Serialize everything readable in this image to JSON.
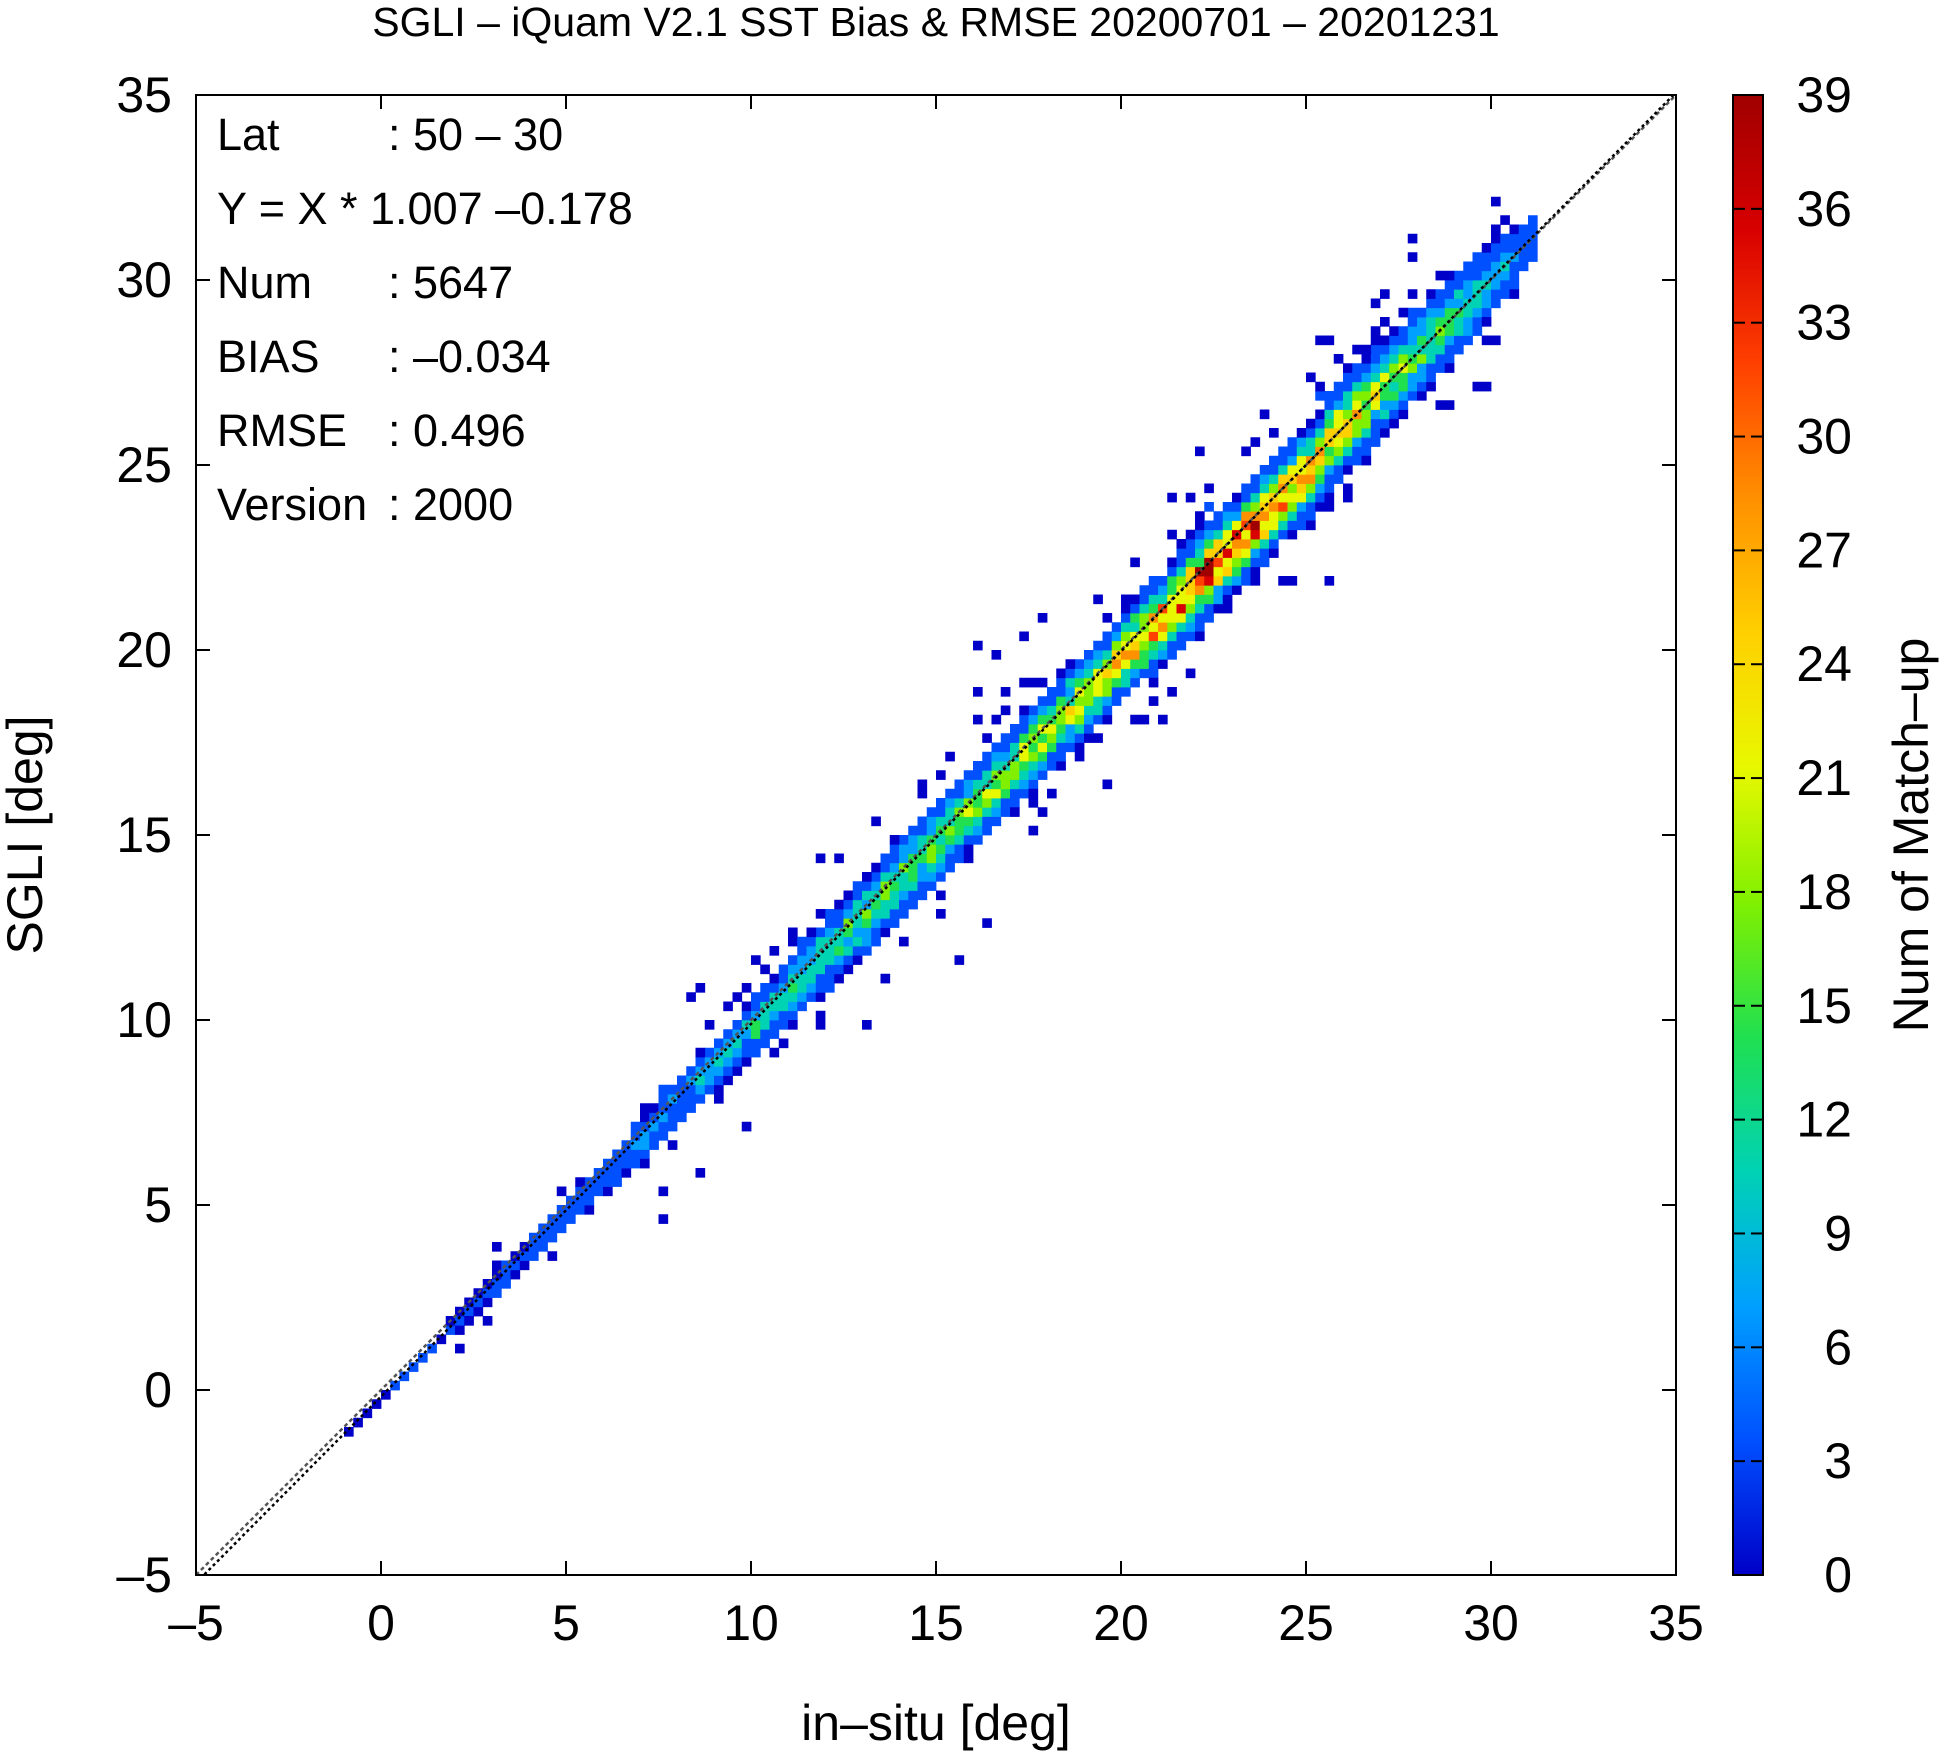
{
  "chart_data": {
    "type": "heatmap",
    "title": "SGLI – iQuam V2.1 SST Bias & RMSE 20200701 – 20201231",
    "xlabel": "in–situ [deg]",
    "ylabel": "SGLI [deg]",
    "xlim": [
      -5,
      35
    ],
    "ylim": [
      -5,
      35
    ],
    "x_ticks": [
      "–5",
      "0",
      "5",
      "10",
      "15",
      "20",
      "25",
      "30",
      "35"
    ],
    "y_ticks": [
      "–5",
      "0",
      "5",
      "10",
      "15",
      "20",
      "25",
      "30",
      "35"
    ],
    "colorbar": {
      "label": "Num of Match–up",
      "range": [
        0,
        39
      ],
      "ticks": [
        "0",
        "3",
        "6",
        "9",
        "12",
        "15",
        "18",
        "21",
        "24",
        "27",
        "30",
        "33",
        "36",
        "39"
      ],
      "colors": [
        "#0000c8",
        "#0050ff",
        "#00a0ff",
        "#00d2b4",
        "#20e050",
        "#80f000",
        "#e8f800",
        "#ffd000",
        "#ff9000",
        "#ff4000",
        "#d80000",
        "#a00000"
      ]
    },
    "stats": [
      {
        "label": "Lat",
        "value": ": 50 – 30"
      },
      {
        "label": "Y = X * 1.007 –0.178",
        "value": ""
      },
      {
        "label": "Num",
        "value": ": 5647"
      },
      {
        "label": "BIAS",
        "value": ": –0.034"
      },
      {
        "label": "RMSE",
        "value": ": 0.496"
      },
      {
        "label": "Version",
        "value": ": 2000"
      }
    ],
    "regression": {
      "slope": 1.007,
      "intercept": -0.178
    },
    "density_profile": [
      {
        "x": -1,
        "count": 1,
        "spread": 0.05
      },
      {
        "x": 2,
        "count": 2,
        "spread": 0.2
      },
      {
        "x": 4,
        "count": 3,
        "spread": 0.25
      },
      {
        "x": 6,
        "count": 4,
        "spread": 0.3
      },
      {
        "x": 8,
        "count": 6,
        "spread": 0.35
      },
      {
        "x": 10,
        "count": 10,
        "spread": 0.4
      },
      {
        "x": 12,
        "count": 12,
        "spread": 0.45
      },
      {
        "x": 14,
        "count": 14,
        "spread": 0.5
      },
      {
        "x": 16,
        "count": 16,
        "spread": 0.5
      },
      {
        "x": 18,
        "count": 18,
        "spread": 0.5
      },
      {
        "x": 20,
        "count": 24,
        "spread": 0.5
      },
      {
        "x": 22,
        "count": 32,
        "spread": 0.5
      },
      {
        "x": 24,
        "count": 30,
        "spread": 0.5
      },
      {
        "x": 26,
        "count": 22,
        "spread": 0.55
      },
      {
        "x": 28,
        "count": 14,
        "spread": 0.55
      },
      {
        "x": 30,
        "count": 8,
        "spread": 0.5
      },
      {
        "x": 31,
        "count": 3,
        "spread": 0.4
      }
    ]
  }
}
